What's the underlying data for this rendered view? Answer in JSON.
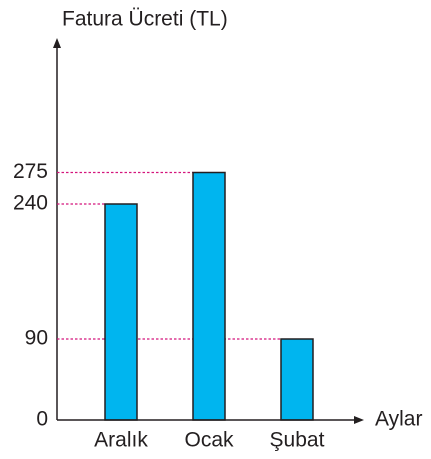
{
  "chart_data": {
    "type": "bar",
    "title": "Fatura Ücreti (TL)",
    "x_label": "Aylar",
    "categories": [
      "Aralık",
      "Ocak",
      "Şubat"
    ],
    "values": [
      240,
      275,
      90
    ],
    "color": "#00b5ef",
    "ylim": [
      0,
      420
    ],
    "yticks": [
      0,
      90,
      240,
      275
    ],
    "grid_color": "#d4147c"
  }
}
